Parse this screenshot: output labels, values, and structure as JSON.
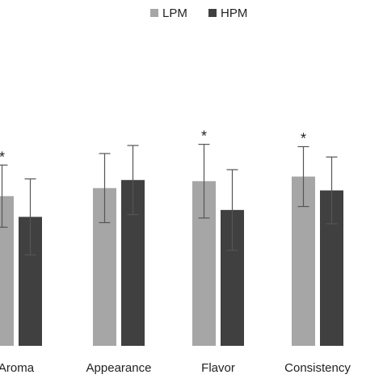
{
  "chart_data": {
    "type": "bar",
    "categories": [
      "Aroma",
      "Appearance",
      "Flavor",
      "Consistency"
    ],
    "series": [
      {
        "name": "LPM",
        "color": "#a6a6a6",
        "values": [
          6.5,
          6.85,
          7.15,
          7.35
        ],
        "error": [
          1.35,
          1.5,
          1.6,
          1.3
        ],
        "significance": [
          "*",
          "",
          "*",
          "*"
        ]
      },
      {
        "name": "HPM",
        "color": "#404040",
        "values": [
          5.6,
          7.2,
          5.9,
          6.75
        ],
        "error": [
          1.65,
          1.5,
          1.75,
          1.45
        ],
        "significance": [
          "",
          "",
          "",
          ""
        ]
      }
    ],
    "ylim": [
      0,
      10
    ],
    "grid": false,
    "legend_position": "top-center",
    "title": "",
    "xlabel": "",
    "ylabel": ""
  }
}
